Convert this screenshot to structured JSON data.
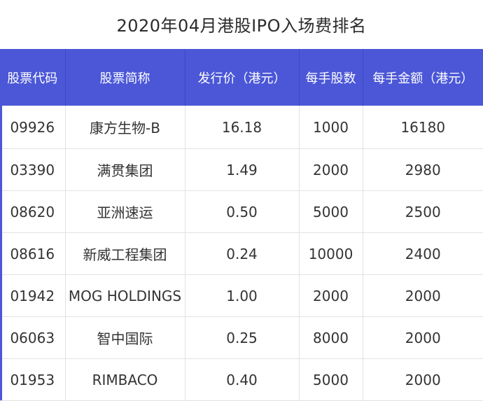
{
  "title": "2020年04月港股IPO入场费排名",
  "colors": {
    "header_bg": "#4b57d7",
    "header_text": "#ffffff",
    "body_text": "#333333",
    "grid": "#e2e2e2"
  },
  "table": {
    "headers": [
      "股票代码",
      "股票简称",
      "发行价（港元）",
      "每手股数",
      "每手金额（港元）"
    ],
    "rows": [
      [
        "09926",
        "康方生物-B",
        "16.18",
        "1000",
        "16180"
      ],
      [
        "03390",
        "满贯集团",
        "1.49",
        "2000",
        "2980"
      ],
      [
        "08620",
        "亚洲速运",
        "0.50",
        "5000",
        "2500"
      ],
      [
        "08616",
        "新威工程集团",
        "0.24",
        "10000",
        "2400"
      ],
      [
        "01942",
        "MOG HOLDINGS",
        "1.00",
        "2000",
        "2000"
      ],
      [
        "06063",
        "智中国际",
        "0.25",
        "8000",
        "2000"
      ],
      [
        "01953",
        "RIMBACO",
        "0.40",
        "5000",
        "2000"
      ]
    ]
  }
}
